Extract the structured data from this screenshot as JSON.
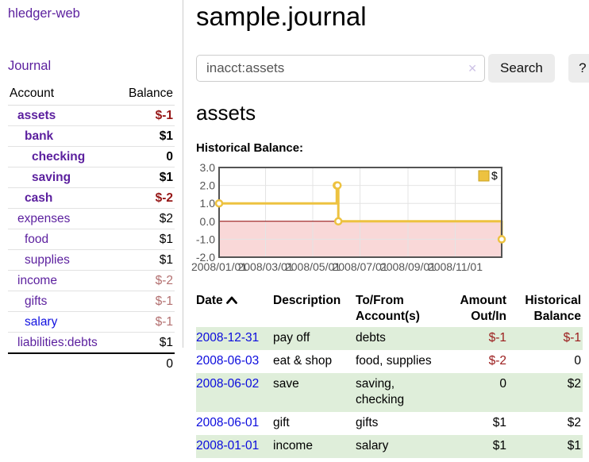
{
  "app_title": "hledger-web",
  "colors": {
    "link_purple": "#5b1f9e",
    "link_blue": "#0b0bdd",
    "negative_strong": "#961616",
    "negative_muted": "#b37070",
    "register_negative": "#9b1c1c",
    "row_shade_green": "#dfeeda",
    "chart_line_gold": "#edc240"
  },
  "sidebar": {
    "journal_link": "Journal",
    "accounts": {
      "col_account": "Account",
      "col_balance": "Balance",
      "rows": [
        {
          "name": "assets",
          "balance": "$-1",
          "depth": 1,
          "emph": true,
          "neg": "strong",
          "blue": false
        },
        {
          "name": "bank",
          "balance": "$1",
          "depth": 2,
          "emph": true,
          "neg": "none",
          "blue": false
        },
        {
          "name": "checking",
          "balance": "0",
          "depth": 3,
          "emph": true,
          "neg": "none",
          "blue": false
        },
        {
          "name": "saving",
          "balance": "$1",
          "depth": 3,
          "emph": true,
          "neg": "none",
          "blue": false
        },
        {
          "name": "cash",
          "balance": "$-2",
          "depth": 2,
          "emph": true,
          "neg": "strong",
          "blue": false
        },
        {
          "name": "expenses",
          "balance": "$2",
          "depth": 1,
          "emph": false,
          "neg": "none",
          "blue": false
        },
        {
          "name": "food",
          "balance": "$1",
          "depth": 2,
          "emph": false,
          "neg": "none",
          "blue": false
        },
        {
          "name": "supplies",
          "balance": "$1",
          "depth": 2,
          "emph": false,
          "neg": "none",
          "blue": false
        },
        {
          "name": "income",
          "balance": "$-2",
          "depth": 1,
          "emph": false,
          "neg": "muted",
          "blue": false
        },
        {
          "name": "gifts",
          "balance": "$-1",
          "depth": 2,
          "emph": false,
          "neg": "muted",
          "blue": false
        },
        {
          "name": "salary",
          "balance": "$-1",
          "depth": 2,
          "emph": false,
          "neg": "muted",
          "blue": true
        },
        {
          "name": "liabilities:debts",
          "balance": "$1",
          "depth": 1,
          "emph": false,
          "neg": "none",
          "blue": false
        }
      ],
      "total": "0"
    }
  },
  "main": {
    "page_title": "sample.journal",
    "search": {
      "value": "inacct:assets",
      "clear_icon": "✕",
      "search_button": "Search",
      "help_button": "?"
    },
    "account_heading": "assets",
    "section_label": "Historical Balance:"
  },
  "chart_data": {
    "type": "line",
    "title": "Historical Balance",
    "step": true,
    "series": [
      {
        "name": "$",
        "color": "#edc240",
        "points": [
          {
            "date": "2008-01-01",
            "value": 1
          },
          {
            "date": "2008-06-01",
            "value": 2
          },
          {
            "date": "2008-06-02",
            "value": 2
          },
          {
            "date": "2008-06-03",
            "value": 0
          },
          {
            "date": "2008-12-31",
            "value": -1
          }
        ]
      }
    ],
    "x_range": [
      "2008-01-01",
      "2008-12-31"
    ],
    "ylim": [
      -2,
      3
    ],
    "x_ticks": [
      "2008/01/01",
      "2008/03/01",
      "2008/05/01",
      "2008/07/01",
      "2008/09/01",
      "2008/11/01"
    ],
    "y_ticks": [
      "3.0",
      "2.0",
      "1.0",
      "0.0",
      "-1.0",
      "-2.0"
    ],
    "legend": {
      "label": "$",
      "position": "top-right"
    },
    "grid": true,
    "negative_region_color": "#f9d8d8",
    "zero_line_color": "#8b0000",
    "border_color": "#545454",
    "grid_color": "#e4e4e4",
    "tick_label_color": "#545454"
  },
  "register": {
    "headers": {
      "date": "Date",
      "description": "Description",
      "tofrom": "To/From Account(s)",
      "amount": "Amount Out/In",
      "balance": "Historical Balance"
    },
    "rows": [
      {
        "date": "2008-12-31",
        "description": "pay off",
        "accounts": "debts",
        "amount": "$-1",
        "balance": "$-1",
        "amount_neg": true,
        "balance_neg": true,
        "shade": true
      },
      {
        "date": "2008-06-03",
        "description": "eat & shop",
        "accounts": "food, supplies",
        "amount": "$-2",
        "balance": "0",
        "amount_neg": true,
        "balance_neg": false,
        "shade": false
      },
      {
        "date": "2008-06-02",
        "description": "save",
        "accounts": "saving, checking",
        "amount": "0",
        "balance": "$2",
        "amount_neg": false,
        "balance_neg": false,
        "shade": true
      },
      {
        "date": "2008-06-01",
        "description": "gift",
        "accounts": "gifts",
        "amount": "$1",
        "balance": "$2",
        "amount_neg": false,
        "balance_neg": false,
        "shade": false
      },
      {
        "date": "2008-01-01",
        "description": "income",
        "accounts": "salary",
        "amount": "$1",
        "balance": "$1",
        "amount_neg": false,
        "balance_neg": false,
        "shade": true
      }
    ]
  }
}
